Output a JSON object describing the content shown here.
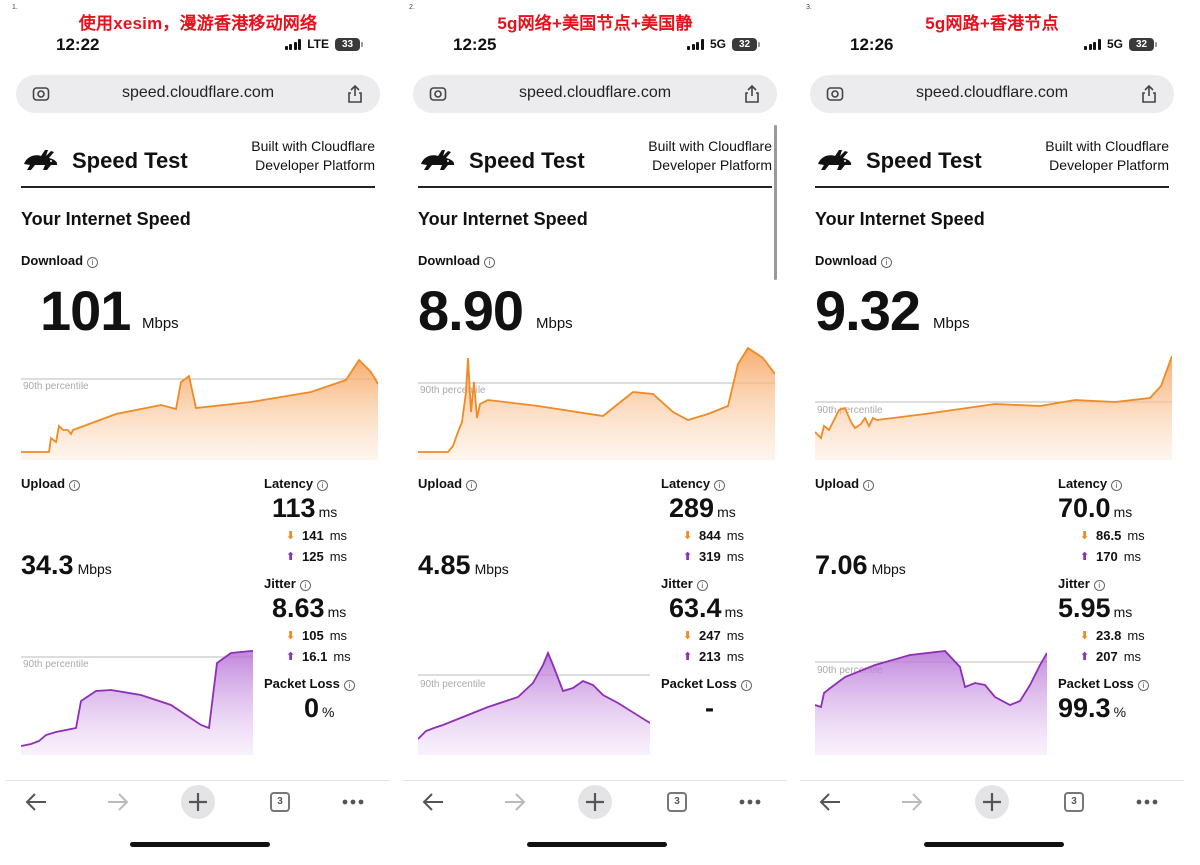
{
  "colors": {
    "download": "#f08a24",
    "upload": "#8e2fb4",
    "caption": "#e8101c"
  },
  "panels": [
    {
      "num": "1.",
      "caption": "使用xesim，漫游香港移动网络",
      "time": "12:22",
      "network": "LTE",
      "battery": "33",
      "url": "speed.cloudflare.com",
      "brand_title": "Speed Test",
      "brand_sub1": "Built with Cloudflare",
      "brand_sub2": "Developer Platform",
      "section_title": "Your Internet Speed",
      "download_label": "Download",
      "download_value": "101",
      "download_unit": "Mbps",
      "percentile_label": "90th percentile",
      "upload_label": "Upload",
      "upload_value": "34.3",
      "upload_unit": "Mbps",
      "latency_label": "Latency",
      "latency_value": "113",
      "latency_down": "141",
      "latency_up": "125",
      "jitter_label": "Jitter",
      "jitter_value": "8.63",
      "jitter_down": "105",
      "jitter_up": "16.1",
      "ms": "ms",
      "loss_label": "Packet Loss",
      "loss_value": "0",
      "loss_unit": "%",
      "tabs_count": "3"
    },
    {
      "num": "2.",
      "caption": "5g网络+美国节点+美国静",
      "time": "12:25",
      "network": "5G",
      "battery": "32",
      "url": "speed.cloudflare.com",
      "brand_title": "Speed Test",
      "brand_sub1": "Built with Cloudflare",
      "brand_sub2": "Developer Platform",
      "section_title": "Your Internet Speed",
      "download_label": "Download",
      "download_value": "8.90",
      "download_unit": "Mbps",
      "percentile_label": "90th percentile",
      "upload_label": "Upload",
      "upload_value": "4.85",
      "upload_unit": "Mbps",
      "latency_label": "Latency",
      "latency_value": "289",
      "latency_down": "844",
      "latency_up": "319",
      "jitter_label": "Jitter",
      "jitter_value": "63.4",
      "jitter_down": "247",
      "jitter_up": "213",
      "ms": "ms",
      "loss_label": "Packet Loss",
      "loss_value": "-",
      "loss_unit": "",
      "tabs_count": "3"
    },
    {
      "num": "3.",
      "caption": "5g网路+香港节点",
      "time": "12:26",
      "network": "5G",
      "battery": "32",
      "url": "speed.cloudflare.com",
      "brand_title": "Speed Test",
      "brand_sub1": "Built with Cloudflare",
      "brand_sub2": "Developer Platform",
      "section_title": "Your Internet Speed",
      "download_label": "Download",
      "download_value": "9.32",
      "download_unit": "Mbps",
      "percentile_label": "90th percentile",
      "upload_label": "Upload",
      "upload_value": "7.06",
      "upload_unit": "Mbps",
      "latency_label": "Latency",
      "latency_value": "70.0",
      "latency_down": "86.5",
      "latency_up": "170",
      "jitter_label": "Jitter",
      "jitter_value": "5.95",
      "jitter_down": "23.8",
      "jitter_up": "207",
      "ms": "ms",
      "loss_label": "Packet Loss",
      "loss_value": "99.3",
      "loss_unit": "%",
      "tabs_count": "3"
    }
  ]
}
